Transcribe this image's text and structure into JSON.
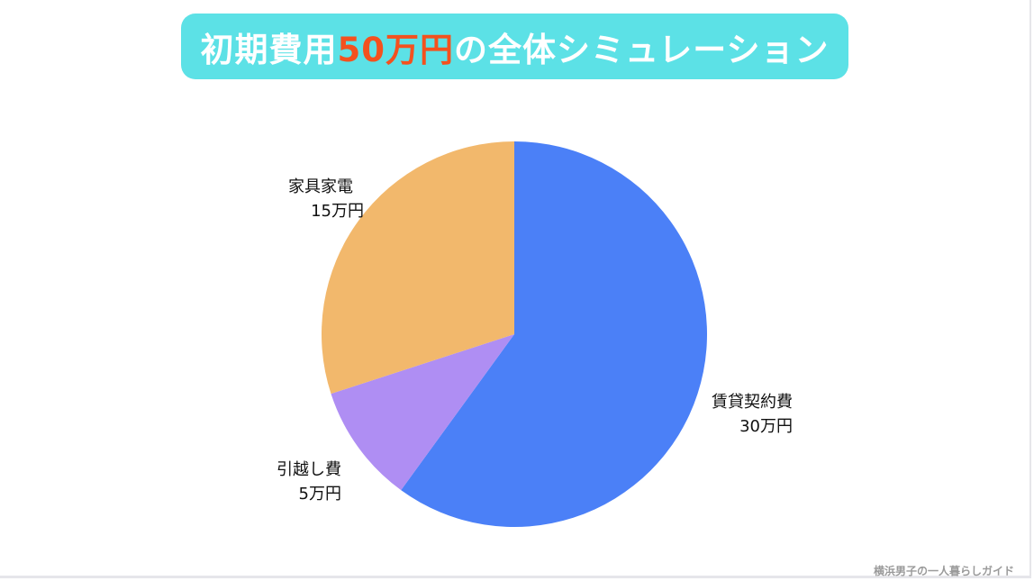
{
  "title": {
    "pre": "初期費用",
    "highlight": "50万円",
    "post": "の全体シミュレーション",
    "bg_color": "#5ce1e6",
    "highlight_color": "#f4511e"
  },
  "chart_data": {
    "type": "pie",
    "start": "top",
    "direction": "clockwise",
    "slices": [
      {
        "label": "賃貸契約費",
        "value_label": "30万円",
        "value": 30,
        "color": "#4b80f7"
      },
      {
        "label": "引越し費",
        "value_label": "5万円",
        "value": 5,
        "color": "#af8ef3"
      },
      {
        "label": "家具家電",
        "value_label": "15万円",
        "value": 15,
        "color": "#f2b86c"
      }
    ]
  },
  "footer": "横浜男子の一人暮らしガイド"
}
